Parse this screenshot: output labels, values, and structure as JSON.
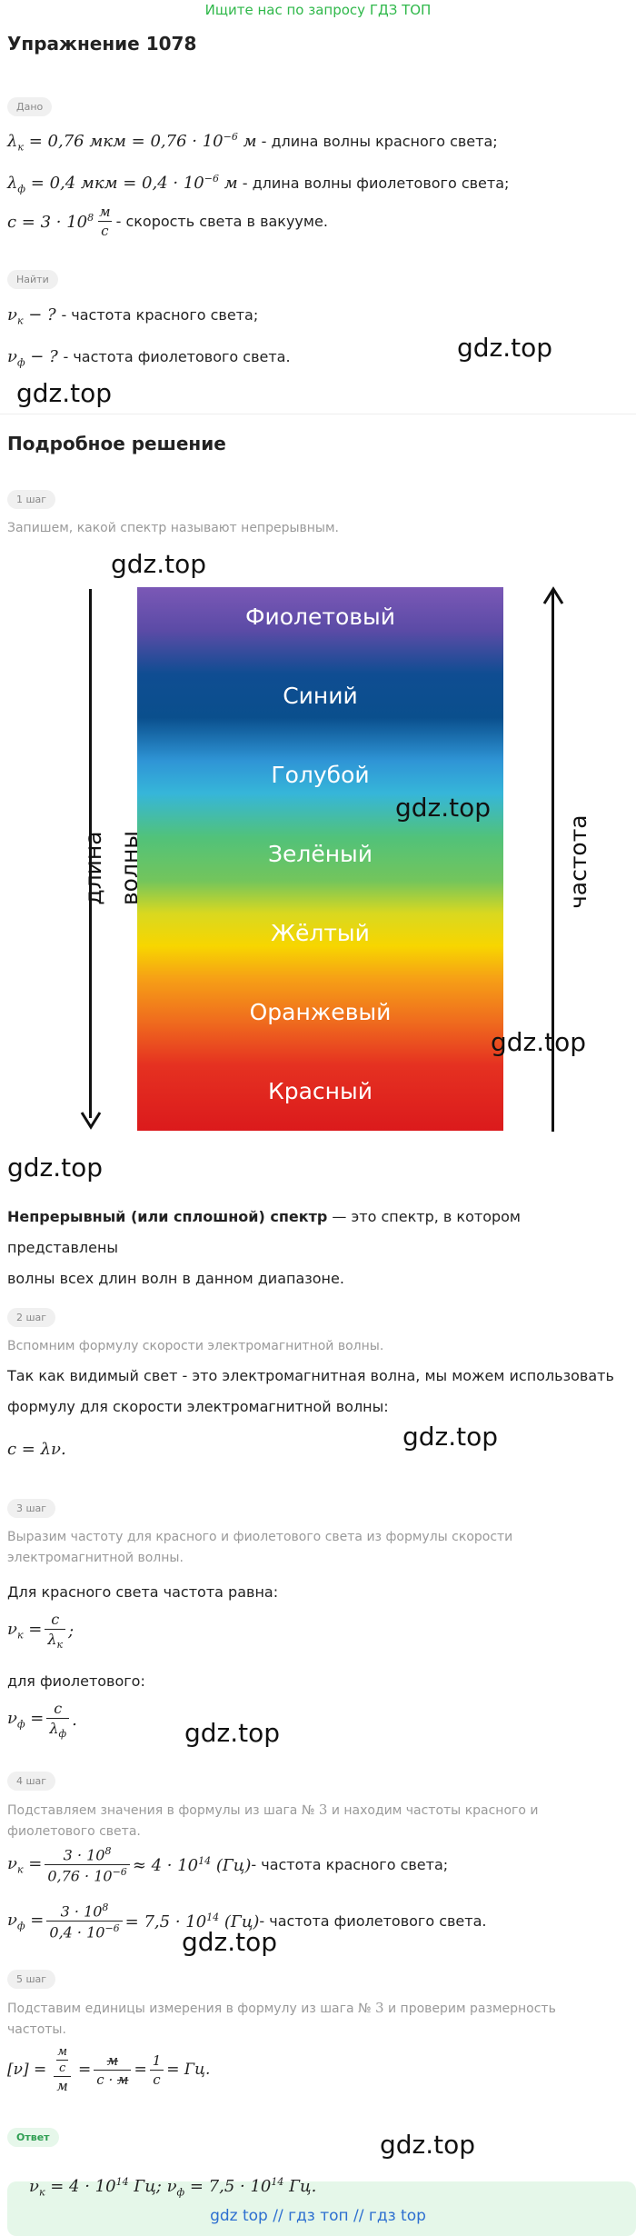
{
  "banner": "Ищите нас по запросу ГДЗ ТОП",
  "title": "Упражнение 1078",
  "given_label": "Дано",
  "find_label": "Найти",
  "given": {
    "lk_text": " - длина волны красного света;",
    "lf_text": " - длина волны фиолетового света;",
    "c_text": " - скорость света в вакууме."
  },
  "find": {
    "nk_text": " - частота красного света;",
    "nf_text": " - частота фиолетового света."
  },
  "watermark": "gdz.top",
  "solution_title": "Подробное решение",
  "step1": {
    "label": "1 шаг",
    "text": "Запишем, какой спектр называют непрерывным."
  },
  "spectrum": {
    "bands": [
      "Фиолетовый",
      "Синий",
      "Голубой",
      "Зелёный",
      "Жёлтый",
      "Оранжевый",
      "Красный"
    ],
    "left_axis": "длина волны",
    "right_axis": "частота"
  },
  "definition": {
    "bold": "Непрерывный (или сплошной) спектр",
    "rest_line1": " — это спектр, в котором представлены",
    "line2": "волны всех длин волн в данном диапазоне."
  },
  "step2": {
    "label": "2 шаг",
    "text": "Вспомним формулу скорости электромагнитной волны.",
    "line1": "Так как видимый свет - это электромагнитная волна, мы можем использовать",
    "line2": "формулу для скорости электромагнитной волны:"
  },
  "step3": {
    "label": "3 шаг",
    "text1": "Выразим частоту для красного и фиолетового света из формулы скорости",
    "text2": "электромагнитной волны.",
    "red_line": "Для красного света частота равна:",
    "violet_line": "для фиолетового:"
  },
  "step4": {
    "label": "4 шаг",
    "text1a": "Подставляем значения в формулы из шага № ",
    "text1b": "3",
    "text1c": " и находим частоты красного и",
    "text2": "фиолетового света.",
    "red_text": " - частота красного света;",
    "violet_text": " - частота фиолетового света."
  },
  "step5": {
    "label": "5 шаг",
    "text1a": "Подставим единицы измерения в формулу из шага № ",
    "text1b": "3",
    "text1c": " и проверим размерность",
    "text2": "частоты."
  },
  "answer_label": "Ответ",
  "footer": "gdz top  //  гдз топ  //  гдз top"
}
